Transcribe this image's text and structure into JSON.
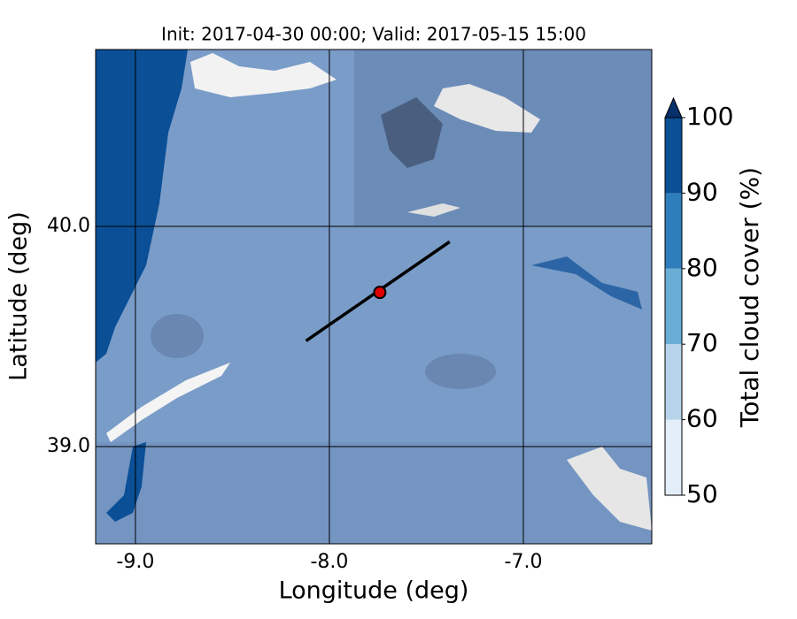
{
  "chart_data": {
    "type": "map",
    "title": "Init: 2017-04-30 00:00; Valid: 2017-05-15 15:00",
    "xlabel": "Longitude (deg)",
    "ylabel": "Latitude (deg)",
    "xlim": [
      -9.205,
      -6.338
    ],
    "ylim": [
      38.558,
      40.803
    ],
    "xticks": [
      {
        "value": -9,
        "label": "-9.0"
      },
      {
        "value": -8,
        "label": "-8.0"
      },
      {
        "value": -7,
        "label": "-7.0"
      }
    ],
    "yticks": [
      {
        "value": 39,
        "label": "39.0"
      },
      {
        "value": 40,
        "label": "40.0"
      }
    ],
    "grid": true,
    "colorbar": {
      "label": "Total cloud cover (%)",
      "ticks": [
        50,
        60,
        70,
        80,
        90,
        100
      ],
      "colors": [
        "#e3eef8",
        "#b7d4ea",
        "#6aaed6",
        "#2e7ebc",
        "#0b4f96"
      ],
      "extend_color": "#08306b"
    },
    "transect": {
      "x": [
        -8.12,
        -7.38
      ],
      "y": [
        39.48,
        39.93
      ],
      "color": "#000000"
    },
    "point": {
      "x": -7.74,
      "y": 39.7,
      "color": "#e00000"
    }
  }
}
